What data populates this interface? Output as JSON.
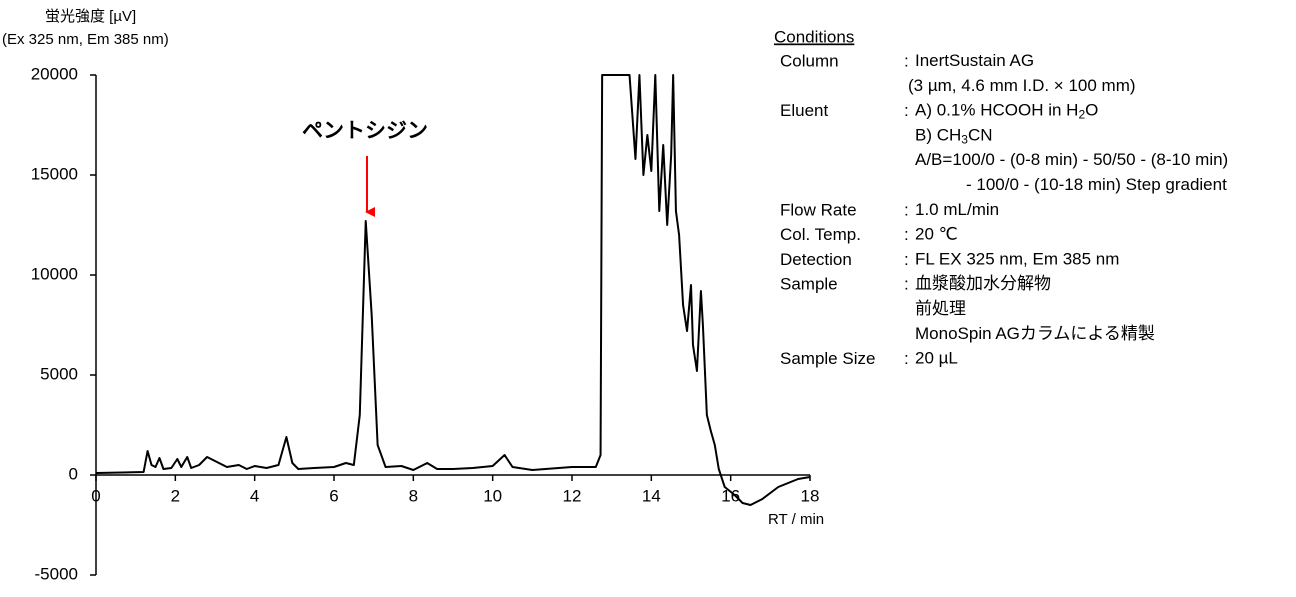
{
  "chart_data": {
    "type": "line",
    "ylabel": [
      "蛍光強度  [µV]",
      "(Ex 325 nm, Em 385 nm)"
    ],
    "xlabel": "RT / min",
    "annotation": "ペントシジン",
    "annotation_color": "#ff0000",
    "color": "#000000",
    "xlim": [
      0,
      18
    ],
    "xticks": [
      0,
      2,
      4,
      6,
      8,
      10,
      12,
      14,
      16,
      18
    ],
    "ylim": [
      -5000,
      20000
    ],
    "yticks": [
      -5000,
      0,
      5000,
      10000,
      15000,
      20000
    ],
    "x": [
      0,
      1.2,
      1.3,
      1.4,
      1.5,
      1.6,
      1.7,
      1.9,
      2.05,
      2.15,
      2.3,
      2.4,
      2.6,
      2.8,
      3.0,
      3.3,
      3.6,
      3.8,
      4.0,
      4.3,
      4.6,
      4.8,
      4.95,
      5.1,
      5.5,
      6.0,
      6.3,
      6.5,
      6.65,
      6.8,
      6.95,
      7.1,
      7.3,
      7.7,
      8.0,
      8.35,
      8.6,
      9.0,
      9.5,
      10.0,
      10.3,
      10.5,
      11.0,
      12.0,
      12.6,
      12.72,
      12.76,
      13.45,
      13.6,
      13.7,
      13.8,
      13.9,
      14.0,
      14.1,
      14.2,
      14.3,
      14.4,
      14.5,
      14.55,
      14.62,
      14.7,
      14.8,
      14.9,
      15.0,
      15.05,
      15.15,
      15.25,
      15.3,
      15.4,
      15.5,
      15.6,
      15.7,
      15.85,
      16.1,
      16.3,
      16.5,
      16.8,
      17.2,
      17.7,
      18.0
    ],
    "values": [
      100,
      150,
      1200,
      500,
      400,
      850,
      300,
      350,
      800,
      400,
      900,
      350,
      500,
      900,
      700,
      400,
      500,
      300,
      450,
      350,
      500,
      1900,
      600,
      300,
      350,
      400,
      600,
      500,
      3000,
      12700,
      8000,
      1500,
      400,
      450,
      250,
      600,
      300,
      300,
      350,
      450,
      1000,
      400,
      250,
      400,
      400,
      1000,
      20000,
      20000,
      15800,
      20000,
      15000,
      17000,
      15200,
      20000,
      13200,
      16500,
      12500,
      16000,
      20000,
      13200,
      12000,
      8500,
      7200,
      9500,
      6500,
      5200,
      9200,
      7500,
      3000,
      2200,
      1500,
      300,
      -600,
      -1000,
      -1400,
      -1500,
      -1200,
      -600,
      -200,
      -100
    ]
  },
  "conditions": {
    "title": "Conditions",
    "separator": ":",
    "rows": [
      {
        "label": "Column",
        "lines": [
          [
            "InertSustain AG"
          ],
          [
            "(3 µm, 4.6 mm I.D. × 100 mm)"
          ]
        ]
      },
      {
        "label": "Eluent",
        "lines": [
          [
            "A) 0.1% HCOOH in H",
            "2",
            "O"
          ],
          [
            "B) CH",
            "3",
            "CN"
          ],
          [
            "A/B=100/0 - (0-8 min) - 50/50 - (8-10 min)"
          ],
          [
            "- 100/0 - (10-18 min) Step gradient"
          ]
        ]
      },
      {
        "label": "Flow Rate",
        "lines": [
          [
            "1.0 mL/min"
          ]
        ]
      },
      {
        "label": "Col. Temp.",
        "lines": [
          [
            "20 ℃"
          ]
        ]
      },
      {
        "label": "Detection",
        "lines": [
          [
            "FL EX 325 nm,  Em 385 nm"
          ]
        ]
      },
      {
        "label": "Sample",
        "lines": [
          [
            "血漿酸加水分解物"
          ],
          [
            "前処理"
          ],
          [
            "MonoSpin AGカラムによる精製"
          ]
        ]
      },
      {
        "label": "Sample Size",
        "lines": [
          [
            "20 µL"
          ]
        ]
      }
    ]
  }
}
